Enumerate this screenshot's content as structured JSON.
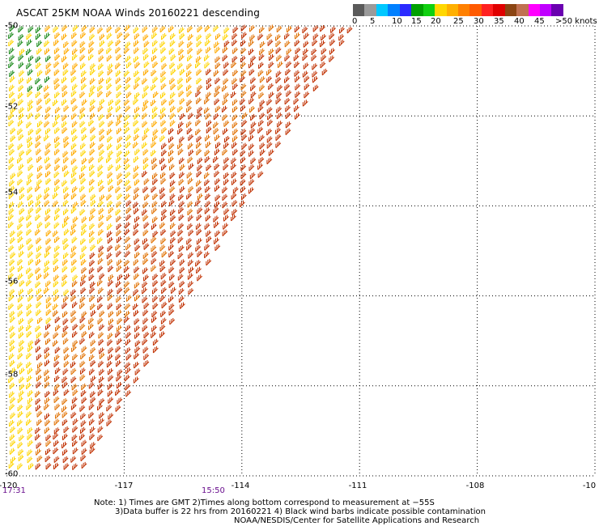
{
  "title": "ASCAT 25KM NOAA Winds 20160221 descending",
  "colorbar": {
    "colors": [
      "#5a5a5a",
      "#9a9a9a",
      "#00c8ff",
      "#0080ff",
      "#2a2aff",
      "#00a000",
      "#10d010",
      "#ffd700",
      "#ffb000",
      "#ff8000",
      "#ff5a00",
      "#ff2020",
      "#e00000",
      "#8b4513",
      "#c07050",
      "#ff00ff",
      "#c000ff",
      "#6a00b0"
    ],
    "labels": [
      "0",
      "5",
      "10",
      "15",
      "20",
      "25",
      "30",
      "35",
      "40",
      "45",
      ">50 knots"
    ]
  },
  "axes": {
    "x_ticks": [
      "-120",
      "-117",
      "-114",
      "-111",
      "-108",
      "-10"
    ],
    "y_ticks": [
      "-50",
      "-52",
      "-54",
      "-56",
      "-58",
      "-60"
    ]
  },
  "times": [
    "17:31",
    "15:50"
  ],
  "notes": [
    "Note: 1) Times are GMT 2)Times along bottom correspond to measurement at −55S",
    "3)Data buffer is 22 hrs from 20160221 4) Black wind barbs indicate possible contamination",
    "NOAA/NESDIS/Center for Satellite Applications and Research"
  ],
  "map": {
    "lon_range": [
      -120,
      -105
    ],
    "lat_range": [
      -60,
      -50
    ],
    "grid": true,
    "barb_colors": {
      "calm": "#1a8a1a",
      "moderate": "#ffd400",
      "fresh": "#ffaa00",
      "strong": "#e07000",
      "gale": "#c03000"
    }
  }
}
